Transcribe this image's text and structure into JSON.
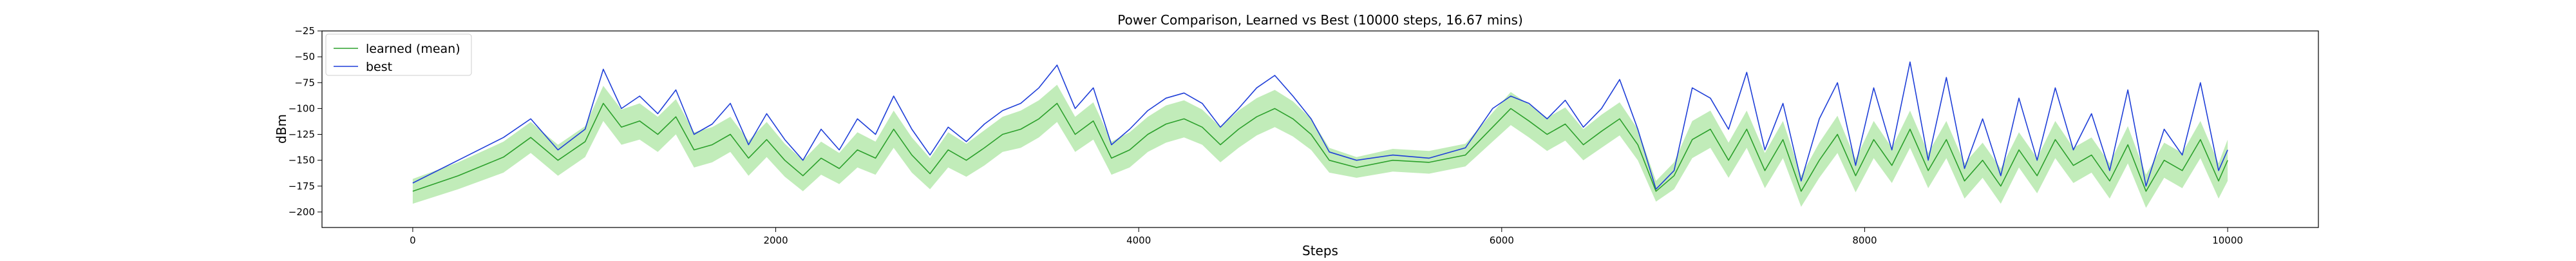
{
  "chart_data": {
    "type": "line",
    "title": "Power Comparison, Learned vs Best (10000 steps, 16.67 mins)",
    "xlabel": "Steps",
    "ylabel": "dBm",
    "xlim": [
      -500,
      10500
    ],
    "ylim": [
      -215,
      -25
    ],
    "xticks": [
      0,
      2000,
      4000,
      6000,
      8000,
      10000
    ],
    "yticks": [
      -25,
      -50,
      -75,
      -100,
      -125,
      -150,
      -175,
      -200
    ],
    "grid": false,
    "legend": {
      "placement": "upper-left"
    },
    "series": [
      {
        "name": "learned (mean)",
        "color": "#2ca02c",
        "band_color": "#98df8a",
        "x": [
          0,
          250,
          500,
          650,
          800,
          950,
          1050,
          1150,
          1250,
          1350,
          1450,
          1550,
          1650,
          1750,
          1850,
          1950,
          2050,
          2150,
          2250,
          2350,
          2450,
          2550,
          2650,
          2750,
          2850,
          2950,
          3050,
          3150,
          3250,
          3350,
          3450,
          3550,
          3650,
          3750,
          3850,
          3950,
          4050,
          4150,
          4250,
          4350,
          4450,
          4550,
          4650,
          4750,
          4850,
          4950,
          5050,
          5200,
          5400,
          5600,
          5800,
          5950,
          6050,
          6150,
          6250,
          6350,
          6450,
          6550,
          6650,
          6750,
          6850,
          6950,
          7050,
          7150,
          7250,
          7350,
          7450,
          7550,
          7650,
          7750,
          7850,
          7950,
          8050,
          8150,
          8250,
          8350,
          8450,
          8550,
          8650,
          8750,
          8850,
          8950,
          9050,
          9150,
          9250,
          9350,
          9450,
          9550,
          9650,
          9750,
          9850,
          9950,
          10000
        ],
        "values": [
          -180,
          -165,
          -147,
          -128,
          -150,
          -132,
          -95,
          -118,
          -112,
          -125,
          -108,
          -140,
          -135,
          -125,
          -148,
          -130,
          -150,
          -165,
          -148,
          -158,
          -140,
          -148,
          -120,
          -145,
          -163,
          -140,
          -150,
          -138,
          -125,
          -120,
          -110,
          -95,
          -125,
          -112,
          -148,
          -140,
          -125,
          -115,
          -110,
          -118,
          -135,
          -120,
          -108,
          -100,
          -110,
          -125,
          -150,
          -157,
          -150,
          -152,
          -145,
          -118,
          -100,
          -112,
          -125,
          -115,
          -135,
          -122,
          -110,
          -135,
          -180,
          -165,
          -130,
          -120,
          -150,
          -120,
          -160,
          -130,
          -180,
          -150,
          -125,
          -165,
          -130,
          -155,
          -120,
          -160,
          -130,
          -170,
          -150,
          -175,
          -140,
          -165,
          -130,
          -155,
          -145,
          -170,
          -135,
          -180,
          -150,
          -160,
          -130,
          -170,
          -150
        ],
        "band_lower": [
          -192,
          -178,
          -162,
          -143,
          -165,
          -147,
          -112,
          -135,
          -130,
          -142,
          -125,
          -157,
          -152,
          -142,
          -165,
          -147,
          -166,
          -180,
          -164,
          -173,
          -157,
          -164,
          -138,
          -162,
          -178,
          -157,
          -166,
          -155,
          -142,
          -138,
          -128,
          -113,
          -142,
          -130,
          -164,
          -157,
          -142,
          -133,
          -128,
          -135,
          -152,
          -138,
          -126,
          -118,
          -127,
          -140,
          -162,
          -167,
          -161,
          -163,
          -156,
          -132,
          -116,
          -128,
          -141,
          -131,
          -150,
          -138,
          -126,
          -150,
          -190,
          -178,
          -148,
          -138,
          -167,
          -138,
          -177,
          -148,
          -195,
          -167,
          -143,
          -181,
          -148,
          -172,
          -138,
          -177,
          -148,
          -187,
          -167,
          -192,
          -157,
          -182,
          -148,
          -172,
          -162,
          -187,
          -153,
          -196,
          -167,
          -177,
          -148,
          -187,
          -170
        ],
        "band_upper": [
          -168,
          -152,
          -132,
          -113,
          -135,
          -117,
          -78,
          -101,
          -95,
          -108,
          -91,
          -123,
          -118,
          -108,
          -131,
          -113,
          -134,
          -150,
          -132,
          -143,
          -123,
          -132,
          -102,
          -128,
          -148,
          -123,
          -134,
          -121,
          -108,
          -102,
          -92,
          -77,
          -108,
          -94,
          -132,
          -123,
          -108,
          -97,
          -92,
          -101,
          -118,
          -102,
          -90,
          -82,
          -93,
          -110,
          -138,
          -147,
          -139,
          -141,
          -134,
          -104,
          -84,
          -96,
          -109,
          -99,
          -120,
          -106,
          -94,
          -120,
          -170,
          -152,
          -112,
          -102,
          -133,
          -102,
          -143,
          -112,
          -165,
          -133,
          -107,
          -149,
          -112,
          -138,
          -102,
          -143,
          -112,
          -153,
          -133,
          -158,
          -123,
          -148,
          -112,
          -138,
          -128,
          -153,
          -117,
          -164,
          -133,
          -143,
          -112,
          -153,
          -130
        ]
      },
      {
        "name": "best",
        "color": "#1f3fd8",
        "x": [
          0,
          250,
          500,
          650,
          800,
          950,
          1050,
          1150,
          1250,
          1350,
          1450,
          1550,
          1650,
          1750,
          1850,
          1950,
          2050,
          2150,
          2250,
          2350,
          2450,
          2550,
          2650,
          2750,
          2850,
          2950,
          3050,
          3150,
          3250,
          3350,
          3450,
          3550,
          3650,
          3750,
          3850,
          3950,
          4050,
          4150,
          4250,
          4350,
          4450,
          4550,
          4650,
          4750,
          4850,
          4950,
          5050,
          5200,
          5400,
          5600,
          5800,
          5950,
          6050,
          6150,
          6250,
          6350,
          6450,
          6550,
          6650,
          6750,
          6850,
          6950,
          7050,
          7150,
          7250,
          7350,
          7450,
          7550,
          7650,
          7750,
          7850,
          7950,
          8050,
          8150,
          8250,
          8350,
          8450,
          8550,
          8650,
          8750,
          8850,
          8950,
          9050,
          9150,
          9250,
          9350,
          9450,
          9550,
          9650,
          9750,
          9850,
          9950,
          10000
        ],
        "values": [
          -172,
          -150,
          -128,
          -110,
          -140,
          -120,
          -62,
          -100,
          -88,
          -105,
          -82,
          -125,
          -115,
          -95,
          -135,
          -105,
          -130,
          -150,
          -120,
          -140,
          -110,
          -125,
          -88,
          -120,
          -145,
          -118,
          -132,
          -115,
          -102,
          -95,
          -80,
          -58,
          -100,
          -80,
          -135,
          -120,
          -102,
          -90,
          -85,
          -95,
          -118,
          -100,
          -80,
          -68,
          -88,
          -110,
          -142,
          -150,
          -145,
          -148,
          -138,
          -100,
          -88,
          -95,
          -110,
          -92,
          -118,
          -100,
          -72,
          -120,
          -178,
          -160,
          -80,
          -90,
          -120,
          -65,
          -140,
          -95,
          -170,
          -110,
          -75,
          -155,
          -80,
          -140,
          -55,
          -150,
          -70,
          -158,
          -110,
          -165,
          -90,
          -150,
          -80,
          -140,
          -105,
          -160,
          -82,
          -175,
          -120,
          -145,
          -75,
          -160,
          -140
        ]
      }
    ]
  }
}
